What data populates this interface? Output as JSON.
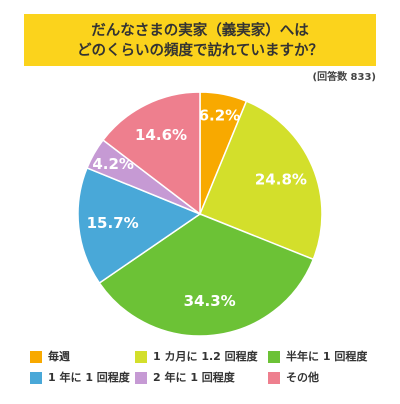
{
  "chart_data": {
    "type": "pie",
    "title": [
      "だんなさまの実家（義実家）へは",
      "どのくらいの頻度で訪れていますか？"
    ],
    "subtitle": "(回答数 833)",
    "categories": [
      "毎週",
      "1 カ月に 1.2 回程度",
      "半年に 1 回程度",
      "1 年に 1 回程度",
      "2 年に 1 回程度",
      "その他"
    ],
    "values": [
      6.2,
      24.8,
      34.3,
      15.7,
      4.2,
      14.6
    ],
    "value_labels": [
      "6.2%",
      "24.8%",
      "34.3%",
      "15.7%",
      "4.2%",
      "14.6%"
    ],
    "colors": [
      "#f8a900",
      "#d3df2b",
      "#6cc236",
      "#49a8d8",
      "#c69ad4",
      "#ee7f8e"
    ]
  }
}
